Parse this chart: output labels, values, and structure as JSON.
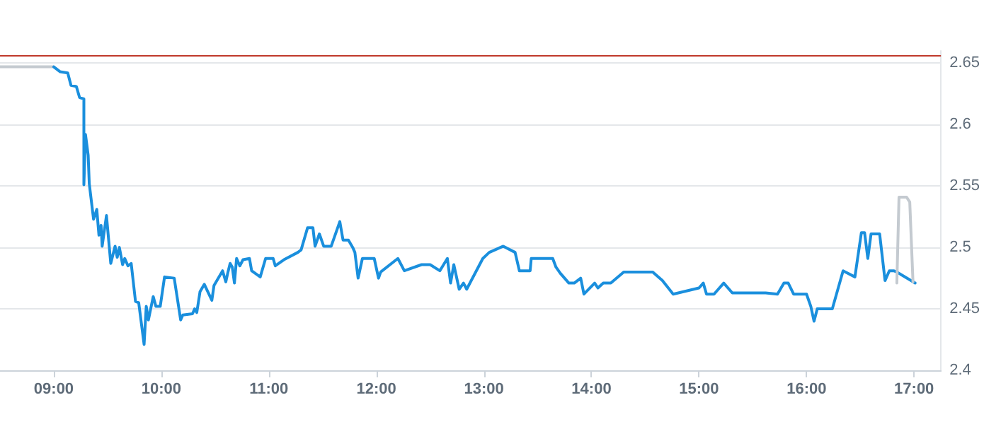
{
  "chart_data": {
    "type": "line",
    "xlim": [
      8.5,
      17.25
    ],
    "ylim": [
      2.4,
      2.66
    ],
    "xticks": [
      {
        "value": 9,
        "label": "09:00"
      },
      {
        "value": 10,
        "label": "10:00"
      },
      {
        "value": 11,
        "label": "11:00"
      },
      {
        "value": 12,
        "label": "12:00"
      },
      {
        "value": 13,
        "label": "13:00"
      },
      {
        "value": 14,
        "label": "14:00"
      },
      {
        "value": 15,
        "label": "15:00"
      },
      {
        "value": 16,
        "label": "16:00"
      },
      {
        "value": 17,
        "label": "17:00"
      }
    ],
    "yticks": [
      2.4,
      2.45,
      2.5,
      2.55,
      2.6,
      2.65
    ],
    "grid": "y",
    "marker": "none",
    "line_style": "solid",
    "ref_lines": [
      {
        "axis": "y",
        "value": 2.656,
        "color": "#c0392b"
      }
    ],
    "series": [
      {
        "color": "#c4cad0",
        "x": [
          8.5,
          9.0
        ],
        "values": [
          2.647,
          2.647
        ]
      },
      {
        "color": "#1a8fdd",
        "x": [
          9.0,
          9.06,
          9.13,
          9.16,
          9.21,
          9.24,
          9.28,
          9.28,
          9.295,
          9.32,
          9.33,
          9.37,
          9.4,
          9.42,
          9.44,
          9.45,
          9.49,
          9.53,
          9.57,
          9.59,
          9.61,
          9.64,
          9.66,
          9.69,
          9.72,
          9.76,
          9.79,
          9.84,
          9.86,
          9.88,
          9.925,
          9.95,
          9.99,
          10.03,
          10.12,
          10.18,
          10.2,
          10.29,
          10.31,
          10.33,
          10.36,
          10.4,
          10.47,
          10.49,
          10.57,
          10.6,
          10.62,
          10.64,
          10.66,
          10.68,
          10.7,
          10.73,
          10.76,
          10.82,
          10.84,
          10.92,
          10.97,
          11.04,
          11.06,
          11.14,
          11.27,
          11.3,
          11.36,
          11.41,
          11.43,
          11.47,
          11.51,
          11.58,
          11.66,
          11.69,
          11.74,
          11.78,
          11.8,
          11.83,
          11.87,
          11.98,
          12.02,
          12.04,
          12.2,
          12.26,
          12.42,
          12.5,
          12.59,
          12.66,
          12.69,
          12.72,
          12.77,
          12.81,
          12.84,
          12.99,
          13.05,
          13.18,
          13.29,
          13.33,
          13.43,
          13.44,
          13.64,
          13.67,
          13.71,
          13.79,
          13.84,
          13.9,
          13.93,
          14.03,
          14.06,
          14.11,
          14.18,
          14.3,
          14.57,
          14.66,
          14.76,
          15.0,
          15.04,
          15.07,
          15.14,
          15.23,
          15.31,
          15.62,
          15.73,
          15.79,
          15.83,
          15.88,
          16.0,
          16.04,
          16.07,
          16.1,
          16.24,
          16.34,
          16.45,
          16.51,
          16.54,
          16.57,
          16.6,
          16.68,
          16.73,
          16.77,
          16.81,
          16.84,
          17.01
        ],
        "values": [
          2.647,
          2.643,
          2.642,
          2.632,
          2.631,
          2.622,
          2.621,
          2.551,
          2.592,
          2.575,
          2.552,
          2.523,
          2.531,
          2.51,
          2.518,
          2.501,
          2.526,
          2.487,
          2.501,
          2.492,
          2.5,
          2.486,
          2.491,
          2.485,
          2.487,
          2.456,
          2.455,
          2.421,
          2.452,
          2.441,
          2.46,
          2.452,
          2.452,
          2.476,
          2.475,
          2.441,
          2.445,
          2.446,
          2.45,
          2.447,
          2.464,
          2.47,
          2.457,
          2.469,
          2.481,
          2.472,
          2.48,
          2.487,
          2.484,
          2.471,
          2.491,
          2.485,
          2.49,
          2.491,
          2.481,
          2.476,
          2.491,
          2.491,
          2.485,
          2.49,
          2.496,
          2.498,
          2.516,
          2.516,
          2.501,
          2.511,
          2.501,
          2.501,
          2.521,
          2.506,
          2.506,
          2.5,
          2.496,
          2.475,
          2.491,
          2.491,
          2.475,
          2.48,
          2.491,
          2.481,
          2.486,
          2.486,
          2.481,
          2.491,
          2.471,
          2.486,
          2.466,
          2.471,
          2.466,
          2.491,
          2.496,
          2.501,
          2.496,
          2.481,
          2.481,
          2.491,
          2.491,
          2.484,
          2.479,
          2.471,
          2.471,
          2.475,
          2.462,
          2.471,
          2.467,
          2.471,
          2.471,
          2.48,
          2.48,
          2.473,
          2.462,
          2.467,
          2.471,
          2.462,
          2.462,
          2.471,
          2.463,
          2.463,
          2.462,
          2.471,
          2.471,
          2.462,
          2.462,
          2.452,
          2.44,
          2.45,
          2.45,
          2.481,
          2.476,
          2.512,
          2.512,
          2.491,
          2.511,
          2.511,
          2.473,
          2.481,
          2.481,
          2.48,
          2.471
        ]
      },
      {
        "color": "#c4cad0",
        "x": [
          16.84,
          16.86,
          16.93,
          16.96,
          16.99
        ],
        "values": [
          2.471,
          2.541,
          2.541,
          2.537,
          2.472
        ]
      }
    ]
  }
}
